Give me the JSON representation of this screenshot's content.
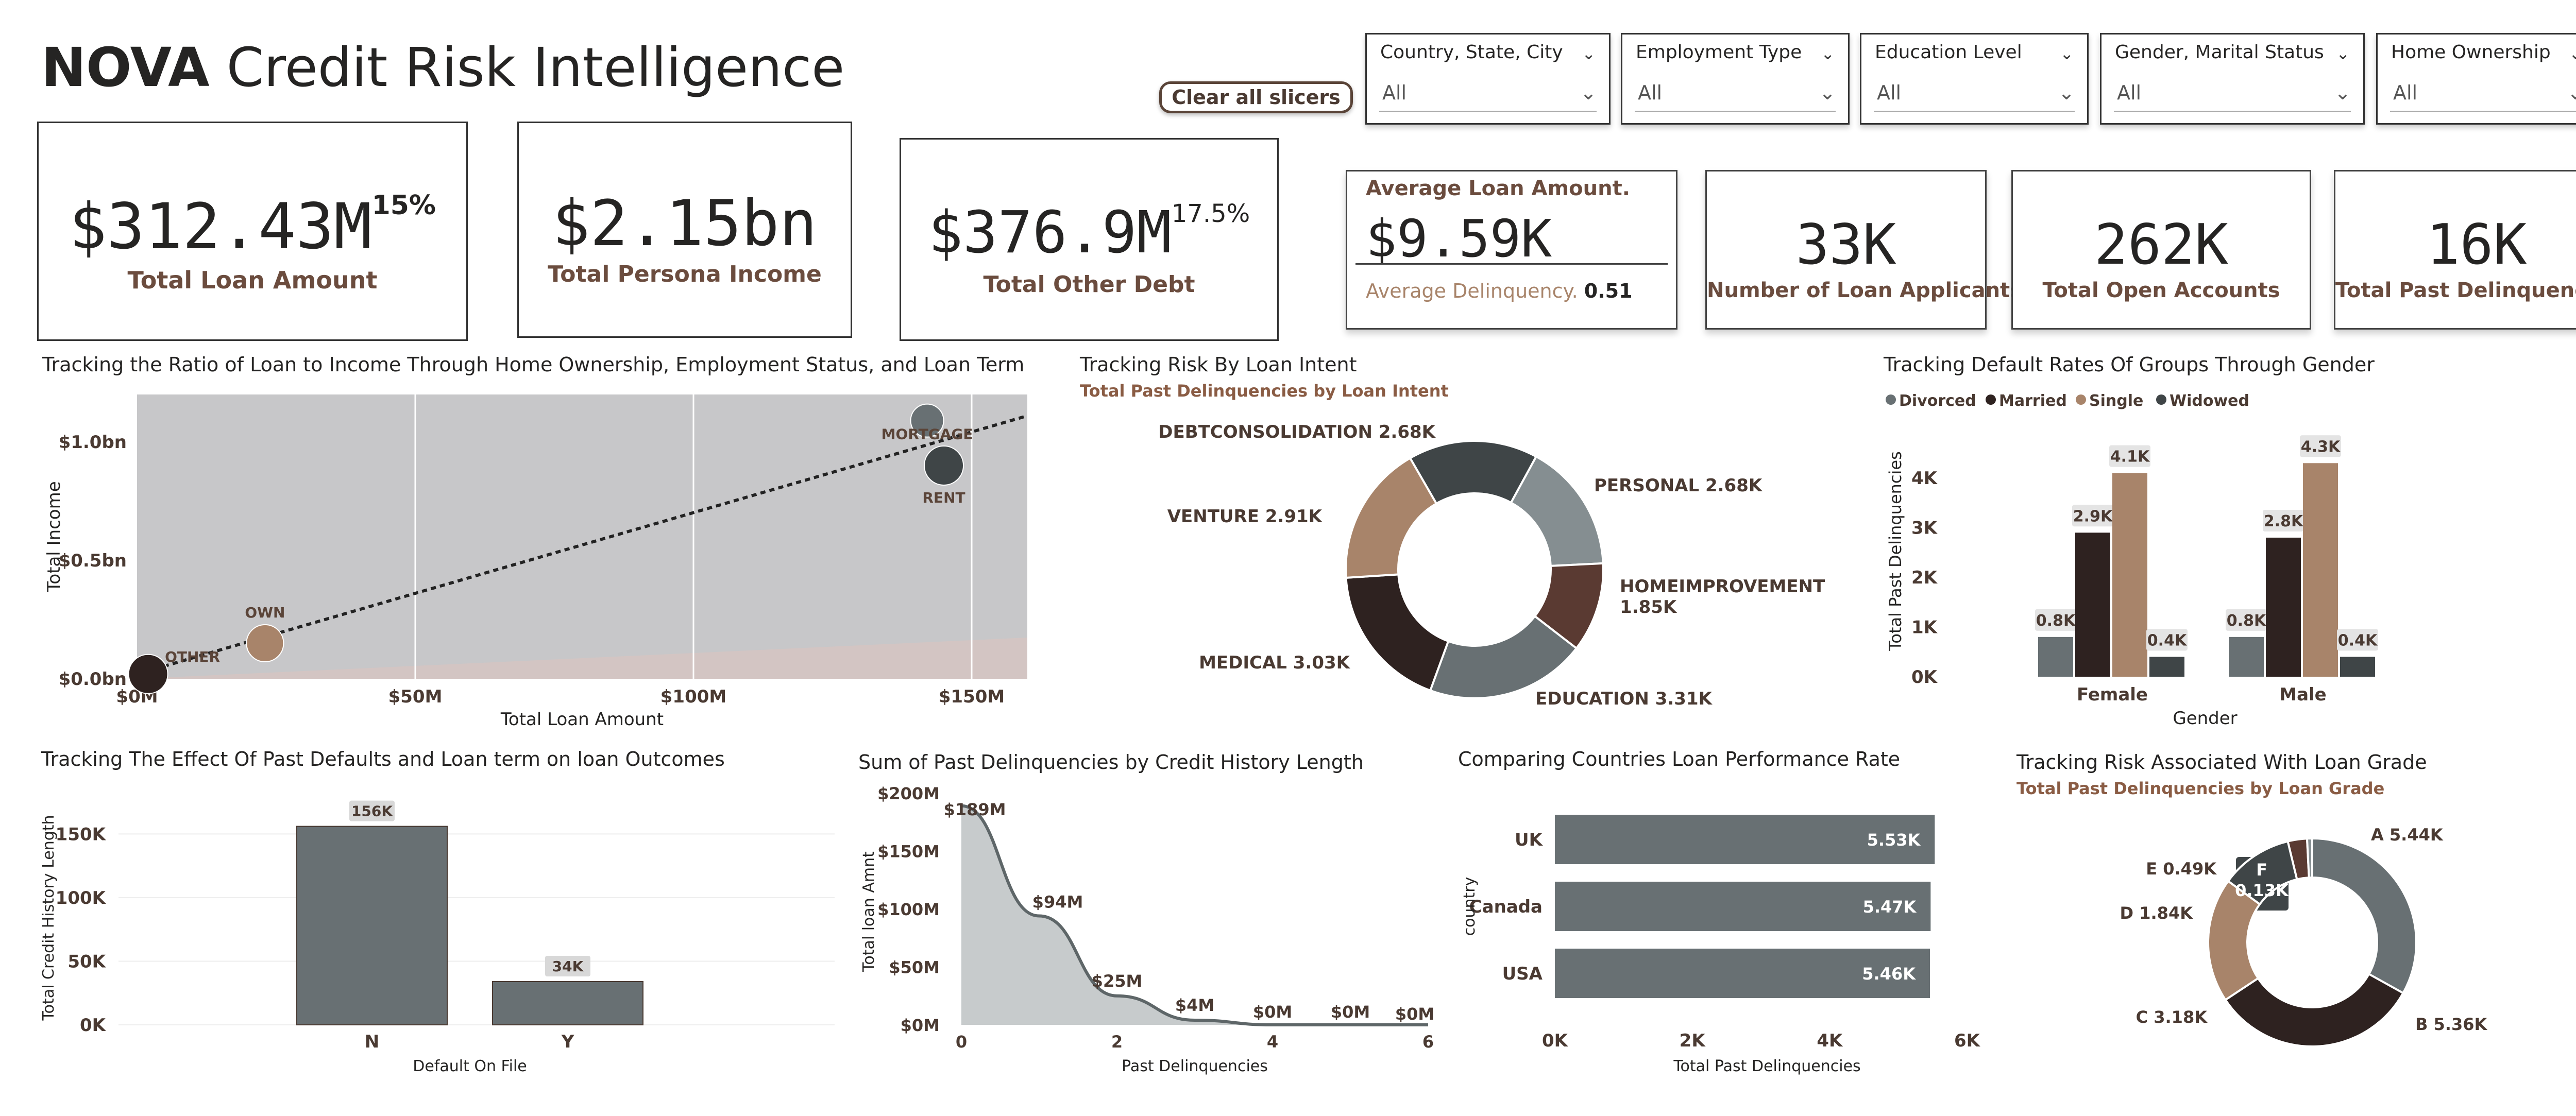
{
  "header": {
    "brand": "NOVA",
    "title_rest": "Credit Risk Intelligence",
    "clear_button": "Clear all slicers"
  },
  "slicers": [
    {
      "title": "Country, State, City",
      "value": "All"
    },
    {
      "title": "Employment Type",
      "value": "All"
    },
    {
      "title": "Education Level",
      "value": "All"
    },
    {
      "title": "Gender, Marital Status",
      "value": "All"
    },
    {
      "title": "Home Ownership",
      "value": "All"
    }
  ],
  "kpis": {
    "total_loan": {
      "value": "$312.43M",
      "pct": "15%",
      "label": "Total Loan Amount"
    },
    "total_income": {
      "value": "$2.15bn",
      "label": "Total Persona Income"
    },
    "total_debt": {
      "value": "$376.9M",
      "pct": "17.5%",
      "label": "Total Other Debt"
    },
    "avg_loan": {
      "label": "Average Loan Amount.",
      "value": "$9.59K",
      "delinq_label": "Average Delinquency.",
      "delinq_value": "0.51"
    },
    "applicants": {
      "value": "33K",
      "label": "Number of Loan Applicants"
    },
    "open_accounts": {
      "value": "262K",
      "label": "Total Open Accounts"
    },
    "past_delinq": {
      "value": "16K",
      "label": "Total Past Delinquencies"
    }
  },
  "colors": {
    "dark": "#2e2220",
    "slate": "#687073",
    "tan": "#a8846a",
    "brown": "#5a3a32",
    "grey": "#858e91",
    "darkslate": "#3f4547"
  },
  "chart_data": [
    {
      "id": "scatter",
      "type": "scatter",
      "title": "Tracking the Ratio of Loan to Income Through Home Ownership, Employment Status, and Loan Term",
      "xlabel": "Total Loan Amount",
      "ylabel": "Total Income",
      "xlim": [
        0,
        160
      ],
      "ylim": [
        0,
        1.2
      ],
      "xticks": [
        0,
        50,
        100,
        150
      ],
      "xtick_labels": [
        "$0M",
        "$50M",
        "$100M",
        "$150M"
      ],
      "yticks": [
        0,
        0.5,
        1.0
      ],
      "ytick_labels": [
        "$0.0bn",
        "$0.5bn",
        "$1.0bn"
      ],
      "points": [
        {
          "label": "OTHER",
          "x": 2,
          "y": 0.02,
          "color": "#2e2220"
        },
        {
          "label": "OWN",
          "x": 23,
          "y": 0.15,
          "color": "#a8846a"
        },
        {
          "label": "MORTGAGE",
          "x": 142,
          "y": 1.09,
          "color": "#687073"
        },
        {
          "label": "RENT",
          "x": 145,
          "y": 0.9,
          "color": "#3f4547"
        }
      ],
      "trend": [
        [
          0,
          0.02
        ],
        [
          160,
          1.11
        ]
      ]
    },
    {
      "id": "intent",
      "type": "pie",
      "title": "Tracking Risk By Loan Intent",
      "subtitle": "Total Past Delinquencies by Loan Intent",
      "slices": [
        {
          "label": "DEBTCONSOLIDATION",
          "value": 2.68,
          "display": "2.68K",
          "color": "#3f4547"
        },
        {
          "label": "PERSONAL",
          "value": 2.68,
          "display": "2.68K",
          "color": "#858e91"
        },
        {
          "label": "HOMEIMPROVEMENT",
          "value": 1.85,
          "display": "1.85K",
          "color": "#5a3a32"
        },
        {
          "label": "EDUCATION",
          "value": 3.31,
          "display": "3.31K",
          "color": "#687073"
        },
        {
          "label": "MEDICAL",
          "value": 3.03,
          "display": "3.03K",
          "color": "#2e2220"
        },
        {
          "label": "VENTURE",
          "value": 2.91,
          "display": "2.91K",
          "color": "#a8846a"
        }
      ]
    },
    {
      "id": "gender",
      "type": "bar",
      "title": "Tracking Default Rates Of Groups Through Gender",
      "xlabel": "Gender",
      "ylabel": "Total Past Delinquencies",
      "categories": [
        "Female",
        "Male"
      ],
      "ylim": [
        0,
        4.5
      ],
      "yticks": [
        0,
        1,
        2,
        3,
        4
      ],
      "ytick_labels": [
        "0K",
        "1K",
        "2K",
        "3K",
        "4K"
      ],
      "legend": "top-left",
      "series": [
        {
          "name": "Divorced",
          "values": [
            0.8,
            0.8
          ],
          "labels": [
            "0.8K",
            "0.8K"
          ],
          "color": "#687073"
        },
        {
          "name": "Married",
          "values": [
            2.9,
            2.8
          ],
          "labels": [
            "2.9K",
            "2.8K"
          ],
          "color": "#2e2220"
        },
        {
          "name": "Single",
          "values": [
            4.1,
            4.3
          ],
          "labels": [
            "4.1K",
            "4.3K"
          ],
          "color": "#a8846a"
        },
        {
          "name": "Widowed",
          "values": [
            0.4,
            0.4
          ],
          "labels": [
            "0.4K",
            "0.4K"
          ],
          "color": "#3f4547"
        }
      ]
    },
    {
      "id": "default",
      "type": "bar",
      "title": "Tracking The Effect Of Past Defaults and Loan term on loan Outcomes",
      "xlabel": "Default On File",
      "ylabel": "Total Credit History Length",
      "categories": [
        "N",
        "Y"
      ],
      "values": [
        156,
        34
      ],
      "labels": [
        "156K",
        "34K"
      ],
      "ylim": [
        0,
        170
      ],
      "yticks": [
        0,
        50,
        100,
        150
      ],
      "ytick_labels": [
        "0K",
        "50K",
        "100K",
        "150K"
      ]
    },
    {
      "id": "credit",
      "type": "area",
      "title": "Sum of Past Delinquencies by Credit History Length",
      "xlabel": "Past Delinquencies",
      "ylabel": "Total loan Amnt",
      "x": [
        0,
        1,
        2,
        3,
        4,
        5,
        6
      ],
      "values": [
        189,
        94,
        25,
        4,
        0,
        0,
        0
      ],
      "labels": [
        "$189M",
        "$94M",
        "$25M",
        "$4M",
        "$0M",
        "$0M",
        "$0M"
      ],
      "xlim": [
        0,
        6
      ],
      "ylim": [
        0,
        200
      ],
      "xticks": [
        0,
        2,
        4,
        6
      ],
      "yticks": [
        0,
        50,
        100,
        150,
        200
      ],
      "ytick_labels": [
        "$0M",
        "$50M",
        "$100M",
        "$150M",
        "$200M"
      ]
    },
    {
      "id": "country",
      "type": "bar",
      "title": "Comparing Countries Loan Performance Rate",
      "xlabel": "Total Past Delinquencies",
      "ylabel": "country",
      "categories": [
        "UK",
        "Canada",
        "USA"
      ],
      "values": [
        5.53,
        5.47,
        5.46
      ],
      "labels": [
        "5.53K",
        "5.47K",
        "5.46K"
      ],
      "xlim": [
        0,
        6
      ],
      "xticks": [
        0,
        2,
        4,
        6
      ],
      "xtick_labels": [
        "0K",
        "2K",
        "4K",
        "6K"
      ]
    },
    {
      "id": "grade",
      "type": "pie",
      "title": "Tracking Risk Associated With Loan Grade",
      "subtitle": "Total Past Delinquencies by Loan Grade",
      "slices": [
        {
          "label": "A",
          "value": 5.44,
          "display": "5.44K",
          "color": "#687073"
        },
        {
          "label": "B",
          "value": 5.36,
          "display": "5.36K",
          "color": "#2e2220"
        },
        {
          "label": "C",
          "value": 3.18,
          "display": "3.18K",
          "color": "#a8846a"
        },
        {
          "label": "D",
          "value": 1.84,
          "display": "1.84K",
          "color": "#3f4547"
        },
        {
          "label": "E",
          "value": 0.49,
          "display": "0.49K",
          "color": "#5a3a32"
        },
        {
          "label": "F",
          "value": 0.13,
          "display": "0.13K",
          "color": "#858e91"
        }
      ]
    }
  ]
}
